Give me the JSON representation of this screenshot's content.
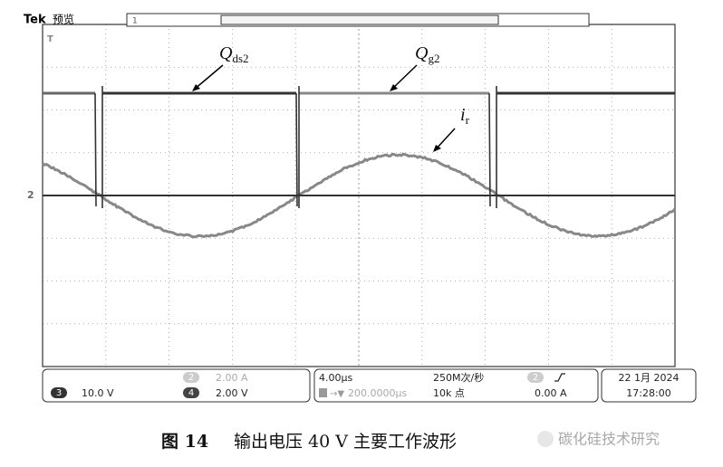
{
  "header": {
    "brand": "Tek",
    "mode": "预览"
  },
  "markers": {
    "trigger": "T",
    "channel2": "2",
    "channel1": "1"
  },
  "annotations": [
    {
      "symbol": "Q",
      "subscript": "ds2"
    },
    {
      "symbol": "Q",
      "subscript": "g2"
    },
    {
      "symbol": "i",
      "subscript": "r"
    }
  ],
  "readout": {
    "ch3": {
      "badge": "3",
      "scale": "10.0 V"
    },
    "ch2": {
      "badge": "2",
      "scale": "2.00 A"
    },
    "ch4": {
      "badge": "4",
      "scale": "2.00 V"
    },
    "timebase": "4.00μs",
    "trigger_position": "200.0000μs",
    "sample_rate": "250M次/秒",
    "record_length": "10k 点",
    "trigger": {
      "badge": "2",
      "level": "0.00 A"
    },
    "date": "22 1月 2024",
    "time": "17:28:00"
  },
  "caption": {
    "label": "图 14",
    "text": "输出电压 40 V 主要工作波形"
  },
  "watermark": "碳化硅技术研究"
}
